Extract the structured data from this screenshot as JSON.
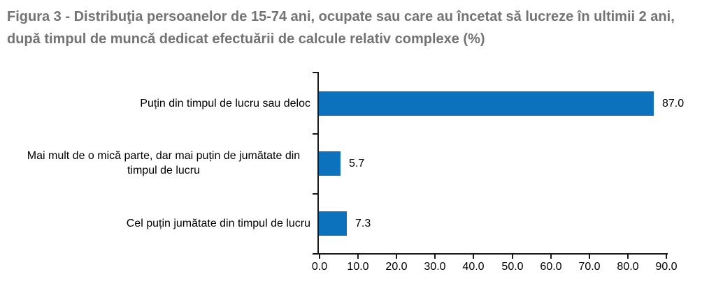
{
  "title": "Figura 3 - Distribuţia persoanelor de 15-74 ani, ocupate sau care au încetat să lucreze în ultimii 2 ani, după timpul de muncă dedicat efectuării de calcule relativ complexe (%)",
  "colors": {
    "bar": "#0C72BE",
    "title_text": "#737373",
    "axis": "#1A1A1A",
    "label_text": "#000000",
    "background": "#FFFFFF"
  },
  "chart_data": {
    "type": "bar",
    "orientation": "horizontal",
    "title": "Figura 3 - Distribuţia persoanelor de 15-74 ani, ocupate sau care au încetat să lucreze în ultimii 2 ani, după timpul de muncă dedicat efectuării de calcule relativ complexe (%)",
    "categories": [
      "Puțin din timpul de lucru sau deloc",
      "Mai mult de o mică parte, dar mai puțin de jumătate din timpul de lucru",
      "Cel puțin jumătate din timpul de lucru"
    ],
    "values": [
      87.0,
      5.7,
      7.3
    ],
    "value_labels": [
      "87.0",
      "5.7",
      "7.3"
    ],
    "x_ticks": [
      "0.0",
      "10.0",
      "20.0",
      "30.0",
      "40.0",
      "50.0",
      "60.0",
      "70.0",
      "80.0",
      "90.0"
    ],
    "xlim": [
      0,
      90
    ],
    "xlabel": "",
    "ylabel": "",
    "grid": false,
    "legend": false
  }
}
